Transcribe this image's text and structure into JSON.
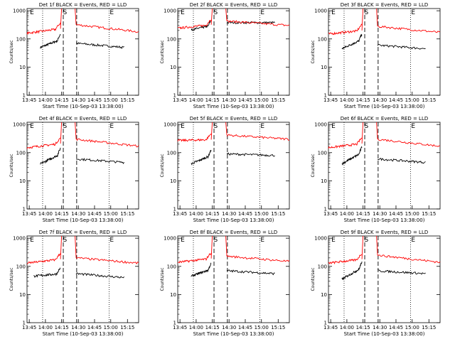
{
  "window": {
    "background": "#ffffff"
  },
  "colors": {
    "events": "#000000",
    "lld": "#ff0000",
    "axis": "#000000"
  },
  "chart_data": [
    {
      "type": "line",
      "title": "Det 1f BLACK = Events, RED = LLD",
      "xlabel": "Start Time (10-Sep-03 13:38:00)",
      "ylabel": "Counts/sec",
      "yscale": "log",
      "ylim": [
        1,
        1200
      ],
      "xlim": [
        0,
        100
      ],
      "ytick_labels": [
        "1",
        "10",
        "100",
        "1000"
      ],
      "xtick_labels": [
        "13:45",
        "14:00",
        "14:15",
        "14:30",
        "14:45",
        "15:00",
        "15:15"
      ],
      "markers": [
        "E",
        "S",
        "E"
      ],
      "series": [
        {
          "name": "Events",
          "color": "#000000",
          "segments": [
            {
              "x": [
                12,
                30
              ],
              "y": [
                50,
                95
              ]
            },
            {
              "x": [
                44,
                87
              ],
              "y": [
                70,
                50
              ]
            }
          ]
        },
        {
          "name": "LLD",
          "color": "#ff0000",
          "segments": [
            {
              "x": [
                0,
                30
              ],
              "y": [
                160,
                230
              ]
            },
            {
              "x": [
                44,
                100
              ],
              "y": [
                320,
                180
              ]
            }
          ]
        }
      ]
    },
    {
      "type": "line",
      "title": "Det 2f BLACK = Events, RED = LLD",
      "xlabel": "Start Time (10-Sep-03 13:38:00)",
      "ylabel": "Counts/sec",
      "yscale": "log",
      "ylim": [
        1,
        1200
      ],
      "xlim": [
        0,
        100
      ],
      "ytick_labels": [
        "1",
        "10",
        "100",
        "1000"
      ],
      "xtick_labels": [
        "13:45",
        "14:00",
        "14:15",
        "14:30",
        "14:45",
        "15:00",
        "15:15"
      ],
      "markers": [
        "E",
        "S",
        "E"
      ],
      "series": [
        {
          "name": "Events",
          "color": "#000000",
          "segments": [
            {
              "x": [
                12,
                30
              ],
              "y": [
                210,
                300
              ]
            },
            {
              "x": [
                44,
                87
              ],
              "y": [
                380,
                380
              ]
            }
          ]
        },
        {
          "name": "LLD",
          "color": "#ff0000",
          "segments": [
            {
              "x": [
                0,
                30
              ],
              "y": [
                240,
                320
              ]
            },
            {
              "x": [
                44,
                100
              ],
              "y": [
                430,
                300
              ]
            }
          ]
        }
      ]
    },
    {
      "type": "line",
      "title": "Det 3f BLACK = Events, RED = LLD",
      "xlabel": "Start Time (10-Sep-03 13:38:00)",
      "ylabel": "Counts/sec",
      "yscale": "log",
      "ylim": [
        1,
        1200
      ],
      "xlim": [
        0,
        100
      ],
      "ytick_labels": [
        "1",
        "10",
        "100",
        "1000"
      ],
      "xtick_labels": [
        "13:45",
        "14:00",
        "14:15",
        "14:30",
        "14:45",
        "15:00",
        "15:15"
      ],
      "markers": [
        "E",
        "S",
        "E"
      ],
      "series": [
        {
          "name": "Events",
          "color": "#000000",
          "segments": [
            {
              "x": [
                12,
                30
              ],
              "y": [
                45,
                95
              ]
            },
            {
              "x": [
                44,
                87
              ],
              "y": [
                60,
                45
              ]
            }
          ]
        },
        {
          "name": "LLD",
          "color": "#ff0000",
          "segments": [
            {
              "x": [
                0,
                30
              ],
              "y": [
                150,
                200
              ]
            },
            {
              "x": [
                44,
                100
              ],
              "y": [
                280,
                170
              ]
            }
          ]
        }
      ]
    },
    {
      "type": "line",
      "title": "Det 4f BLACK = Events, RED = LLD",
      "xlabel": "Start Time (10-Sep-03 13:38:00)",
      "ylabel": "Counts/sec",
      "yscale": "log",
      "ylim": [
        1,
        1200
      ],
      "xlim": [
        0,
        100
      ],
      "ytick_labels": [
        "1",
        "10",
        "100",
        "1000"
      ],
      "xtick_labels": [
        "13:45",
        "14:00",
        "14:15",
        "14:30",
        "14:45",
        "15:00",
        "15:15"
      ],
      "markers": [
        "E",
        "S",
        "E"
      ],
      "series": [
        {
          "name": "Events",
          "color": "#000000",
          "segments": [
            {
              "x": [
                12,
                30
              ],
              "y": [
                40,
                90
              ]
            },
            {
              "x": [
                44,
                87
              ],
              "y": [
                60,
                45
              ]
            }
          ]
        },
        {
          "name": "LLD",
          "color": "#ff0000",
          "segments": [
            {
              "x": [
                0,
                30
              ],
              "y": [
                150,
                210
              ]
            },
            {
              "x": [
                44,
                100
              ],
              "y": [
                300,
                170
              ]
            }
          ]
        }
      ]
    },
    {
      "type": "line",
      "title": "Det 5f BLACK = Events, RED = LLD",
      "xlabel": "Start Time (10-Sep-03 13:38:00)",
      "ylabel": "Counts/sec",
      "yscale": "log",
      "ylim": [
        1,
        1200
      ],
      "xlim": [
        0,
        100
      ],
      "ytick_labels": [
        "1",
        "10",
        "100",
        "1000"
      ],
      "xtick_labels": [
        "13:45",
        "14:00",
        "14:15",
        "14:30",
        "14:45",
        "15:00",
        "15:15"
      ],
      "markers": [
        "E",
        "S",
        "E"
      ],
      "series": [
        {
          "name": "Events",
          "color": "#000000",
          "segments": [
            {
              "x": [
                12,
                30
              ],
              "y": [
                40,
                80
              ]
            },
            {
              "x": [
                44,
                87
              ],
              "y": [
                90,
                80
              ]
            }
          ]
        },
        {
          "name": "LLD",
          "color": "#ff0000",
          "segments": [
            {
              "x": [
                0,
                30
              ],
              "y": [
                270,
                290
              ]
            },
            {
              "x": [
                44,
                100
              ],
              "y": [
                420,
                300
              ]
            }
          ]
        }
      ]
    },
    {
      "type": "line",
      "title": "Det 6f BLACK = Events, RED = LLD",
      "xlabel": "Start Time (10-Sep-03 13:38:00)",
      "ylabel": "Counts/sec",
      "yscale": "log",
      "ylim": [
        1,
        1200
      ],
      "xlim": [
        0,
        100
      ],
      "ytick_labels": [
        "1",
        "10",
        "100",
        "1000"
      ],
      "xtick_labels": [
        "13:45",
        "14:00",
        "14:15",
        "14:30",
        "14:45",
        "15:00",
        "15:15"
      ],
      "markers": [
        "E",
        "S",
        "E"
      ],
      "series": [
        {
          "name": "Events",
          "color": "#000000",
          "segments": [
            {
              "x": [
                12,
                30
              ],
              "y": [
                40,
                100
              ]
            },
            {
              "x": [
                44,
                87
              ],
              "y": [
                60,
                45
              ]
            }
          ]
        },
        {
          "name": "LLD",
          "color": "#ff0000",
          "segments": [
            {
              "x": [
                0,
                30
              ],
              "y": [
                150,
                210
              ]
            },
            {
              "x": [
                44,
                100
              ],
              "y": [
                300,
                170
              ]
            }
          ]
        }
      ]
    },
    {
      "type": "line",
      "title": "Det 7f BLACK = Events, RED = LLD",
      "xlabel": "Start Time (10-Sep-03 13:38:00)",
      "ylabel": "Counts/sec",
      "yscale": "log",
      "ylim": [
        1,
        1200
      ],
      "xlim": [
        0,
        100
      ],
      "ytick_labels": [
        "1",
        "10",
        "100",
        "1000"
      ],
      "xtick_labels": [
        "13:45",
        "14:00",
        "14:15",
        "14:30",
        "14:45",
        "15:00",
        "15:15"
      ],
      "markers": [
        "E",
        "S",
        "E"
      ],
      "series": [
        {
          "name": "Events",
          "color": "#000000",
          "segments": [
            {
              "x": [
                6,
                30
              ],
              "y": [
                45,
                55
              ]
            },
            {
              "x": [
                44,
                87
              ],
              "y": [
                55,
                40
              ]
            }
          ]
        },
        {
          "name": "LLD",
          "color": "#ff0000",
          "segments": [
            {
              "x": [
                0,
                30
              ],
              "y": [
                130,
                180
              ]
            },
            {
              "x": [
                44,
                100
              ],
              "y": [
                200,
                130
              ]
            }
          ]
        }
      ]
    },
    {
      "type": "line",
      "title": "Det 8f BLACK = Events, RED = LLD",
      "xlabel": "Start Time (10-Sep-03 13:38:00)",
      "ylabel": "Counts/sec",
      "yscale": "log",
      "ylim": [
        1,
        1200
      ],
      "xlim": [
        0,
        100
      ],
      "ytick_labels": [
        "1",
        "10",
        "100",
        "1000"
      ],
      "xtick_labels": [
        "13:45",
        "14:00",
        "14:15",
        "14:30",
        "14:45",
        "15:00",
        "15:15"
      ],
      "markers": [
        "E",
        "S",
        "E"
      ],
      "series": [
        {
          "name": "Events",
          "color": "#000000",
          "segments": [
            {
              "x": [
                12,
                30
              ],
              "y": [
                45,
                80
              ]
            },
            {
              "x": [
                44,
                87
              ],
              "y": [
                70,
                55
              ]
            }
          ]
        },
        {
          "name": "LLD",
          "color": "#ff0000",
          "segments": [
            {
              "x": [
                0,
                30
              ],
              "y": [
                140,
                190
              ]
            },
            {
              "x": [
                44,
                100
              ],
              "y": [
                230,
                150
              ]
            }
          ]
        }
      ]
    },
    {
      "type": "line",
      "title": "Det 9f BLACK = Events, RED = LLD",
      "xlabel": "Start Time (10-Sep-03 13:38:00)",
      "ylabel": "Counts/sec",
      "yscale": "log",
      "ylim": [
        1,
        1200
      ],
      "xlim": [
        0,
        100
      ],
      "ytick_labels": [
        "1",
        "10",
        "100",
        "1000"
      ],
      "xtick_labels": [
        "13:45",
        "14:00",
        "14:15",
        "14:30",
        "14:45",
        "15:00",
        "15:15"
      ],
      "markers": [
        "E",
        "S",
        "E"
      ],
      "series": [
        {
          "name": "Events",
          "color": "#000000",
          "segments": [
            {
              "x": [
                12,
                30
              ],
              "y": [
                35,
                90
              ]
            },
            {
              "x": [
                44,
                87
              ],
              "y": [
                70,
                55
              ]
            }
          ]
        },
        {
          "name": "LLD",
          "color": "#ff0000",
          "segments": [
            {
              "x": [
                0,
                30
              ],
              "y": [
                130,
                180
              ]
            },
            {
              "x": [
                44,
                100
              ],
              "y": [
                250,
                140
              ]
            }
          ]
        }
      ]
    }
  ]
}
